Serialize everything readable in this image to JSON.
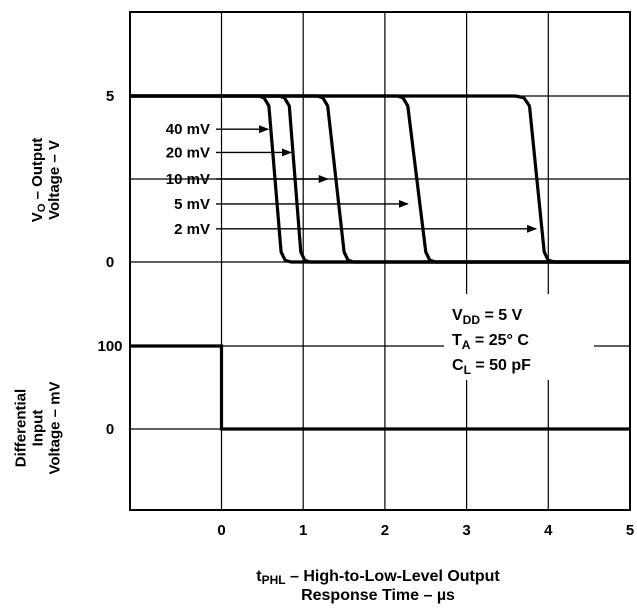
{
  "chart_data": {
    "type": "line",
    "x_ticks": [
      "0",
      "1",
      "2",
      "3",
      "4",
      "5"
    ],
    "xlim": [
      -1.12,
      5
    ],
    "xlabel": {
      "line1_main": "t",
      "line1_sub": "PHL",
      "line1_rest": " – High-to-Low-Level Output",
      "line2": "Response Time – µs"
    },
    "top_panel": {
      "ylabel_line1_main": "V",
      "ylabel_line1_sub": "O",
      "ylabel_line1_rest": " – Output",
      "ylabel_line2": "Voltage – V",
      "y_ticks": [
        "0",
        "5"
      ],
      "ylim": [
        0,
        5
      ],
      "series": [
        {
          "name": "40 mV",
          "points": [
            [
              -1.12,
              5
            ],
            [
              0.45,
              5
            ],
            [
              0.52,
              4.95
            ],
            [
              0.58,
              4.7
            ],
            [
              0.73,
              0.3
            ],
            [
              0.78,
              0.05
            ],
            [
              0.85,
              0
            ],
            [
              5,
              0
            ]
          ]
        },
        {
          "name": "20 mV",
          "points": [
            [
              -1.12,
              5
            ],
            [
              0.7,
              5
            ],
            [
              0.77,
              4.95
            ],
            [
              0.83,
              4.7
            ],
            [
              0.97,
              0.3
            ],
            [
              1.02,
              0.05
            ],
            [
              1.08,
              0
            ],
            [
              5,
              0
            ]
          ]
        },
        {
          "name": "10 mV",
          "points": [
            [
              -1.12,
              5
            ],
            [
              1.17,
              5
            ],
            [
              1.24,
              4.95
            ],
            [
              1.3,
              4.7
            ],
            [
              1.5,
              0.3
            ],
            [
              1.55,
              0.05
            ],
            [
              1.62,
              0
            ],
            [
              5,
              0
            ]
          ]
        },
        {
          "name": "5 mV",
          "points": [
            [
              -1.12,
              5
            ],
            [
              2.15,
              5
            ],
            [
              2.22,
              4.95
            ],
            [
              2.28,
              4.7
            ],
            [
              2.5,
              0.3
            ],
            [
              2.55,
              0.05
            ],
            [
              2.62,
              0
            ],
            [
              5,
              0
            ]
          ]
        },
        {
          "name": "2 mV",
          "points": [
            [
              -1.12,
              5
            ],
            [
              3.6,
              5
            ],
            [
              3.7,
              4.95
            ],
            [
              3.77,
              4.7
            ],
            [
              3.95,
              0.3
            ],
            [
              4.0,
              0.05
            ],
            [
              4.08,
              0
            ],
            [
              5,
              0
            ]
          ]
        }
      ],
      "annotations": [
        {
          "text": "40 mV",
          "label_y": 4.0,
          "arrow_to_x": 0.57
        },
        {
          "text": "20 mV",
          "label_y": 3.3,
          "arrow_to_x": 0.85
        },
        {
          "text": "10 mV",
          "label_y": 2.5,
          "arrow_to_x": 1.3
        },
        {
          "text": "5 mV",
          "label_y": 1.75,
          "arrow_to_x": 2.28
        },
        {
          "text": "2 mV",
          "label_y": 1.0,
          "arrow_to_x": 3.85
        }
      ]
    },
    "bottom_panel": {
      "ylabel_line1": "Differential",
      "ylabel_line2": "Input",
      "ylabel_line3": "Voltage – mV",
      "y_ticks": [
        "0",
        "100"
      ],
      "series": [
        {
          "points": [
            [
              -1.12,
              100
            ],
            [
              0,
              100
            ],
            [
              0,
              0
            ],
            [
              5,
              0
            ]
          ]
        }
      ]
    },
    "conditions": [
      {
        "main": "V",
        "sub": "DD",
        "rest": " = 5 V"
      },
      {
        "main": "T",
        "sub": "A",
        "rest": " = 25° C"
      },
      {
        "main": "C",
        "sub": "L",
        "rest": " = 50 pF"
      }
    ],
    "grid": true
  }
}
